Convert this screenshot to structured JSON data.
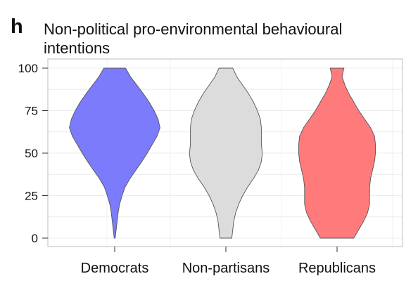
{
  "panel": {
    "letter": "h",
    "title": "Non-political pro-environmental behavioural intentions"
  },
  "chart_data": {
    "type": "violin",
    "title": "Non-political pro-environmental behavioural intentions",
    "xlabel": "",
    "ylabel": "",
    "ylim": [
      0,
      100
    ],
    "yticks": [
      0,
      25,
      50,
      75,
      100
    ],
    "grid": true,
    "categories": [
      "Democrats",
      "Non-partisans",
      "Republicans"
    ],
    "series": [
      {
        "category": "Democrats",
        "color": "#7b7bfb",
        "min": 0,
        "max": 100,
        "density_profile": [
          [
            0,
            0.01
          ],
          [
            5,
            0.03
          ],
          [
            10,
            0.05
          ],
          [
            15,
            0.07
          ],
          [
            20,
            0.1
          ],
          [
            25,
            0.15
          ],
          [
            30,
            0.21
          ],
          [
            35,
            0.31
          ],
          [
            40,
            0.43
          ],
          [
            45,
            0.55
          ],
          [
            50,
            0.66
          ],
          [
            55,
            0.76
          ],
          [
            60,
            0.86
          ],
          [
            65,
            0.92
          ],
          [
            70,
            0.88
          ],
          [
            75,
            0.8
          ],
          [
            80,
            0.7
          ],
          [
            85,
            0.58
          ],
          [
            90,
            0.45
          ],
          [
            95,
            0.32
          ],
          [
            100,
            0.22
          ]
        ]
      },
      {
        "category": "Non-partisans",
        "color": "#dcdcdc",
        "min": 0,
        "max": 100,
        "density_profile": [
          [
            0,
            0.12
          ],
          [
            5,
            0.14
          ],
          [
            10,
            0.16
          ],
          [
            15,
            0.2
          ],
          [
            20,
            0.26
          ],
          [
            25,
            0.34
          ],
          [
            30,
            0.44
          ],
          [
            35,
            0.56
          ],
          [
            40,
            0.66
          ],
          [
            45,
            0.72
          ],
          [
            50,
            0.74
          ],
          [
            55,
            0.72
          ],
          [
            60,
            0.72
          ],
          [
            65,
            0.72
          ],
          [
            70,
            0.7
          ],
          [
            75,
            0.64
          ],
          [
            80,
            0.56
          ],
          [
            85,
            0.46
          ],
          [
            90,
            0.34
          ],
          [
            95,
            0.22
          ],
          [
            100,
            0.14
          ]
        ]
      },
      {
        "category": "Republicans",
        "color": "#ff7b7b",
        "min": 0,
        "max": 100,
        "density_profile": [
          [
            0,
            0.34
          ],
          [
            5,
            0.44
          ],
          [
            10,
            0.54
          ],
          [
            15,
            0.62
          ],
          [
            20,
            0.66
          ],
          [
            25,
            0.66
          ],
          [
            30,
            0.66
          ],
          [
            35,
            0.68
          ],
          [
            40,
            0.72
          ],
          [
            45,
            0.76
          ],
          [
            50,
            0.78
          ],
          [
            55,
            0.78
          ],
          [
            60,
            0.76
          ],
          [
            65,
            0.68
          ],
          [
            70,
            0.56
          ],
          [
            75,
            0.44
          ],
          [
            80,
            0.34
          ],
          [
            85,
            0.24
          ],
          [
            90,
            0.16
          ],
          [
            95,
            0.1
          ],
          [
            100,
            0.14
          ]
        ]
      }
    ]
  }
}
